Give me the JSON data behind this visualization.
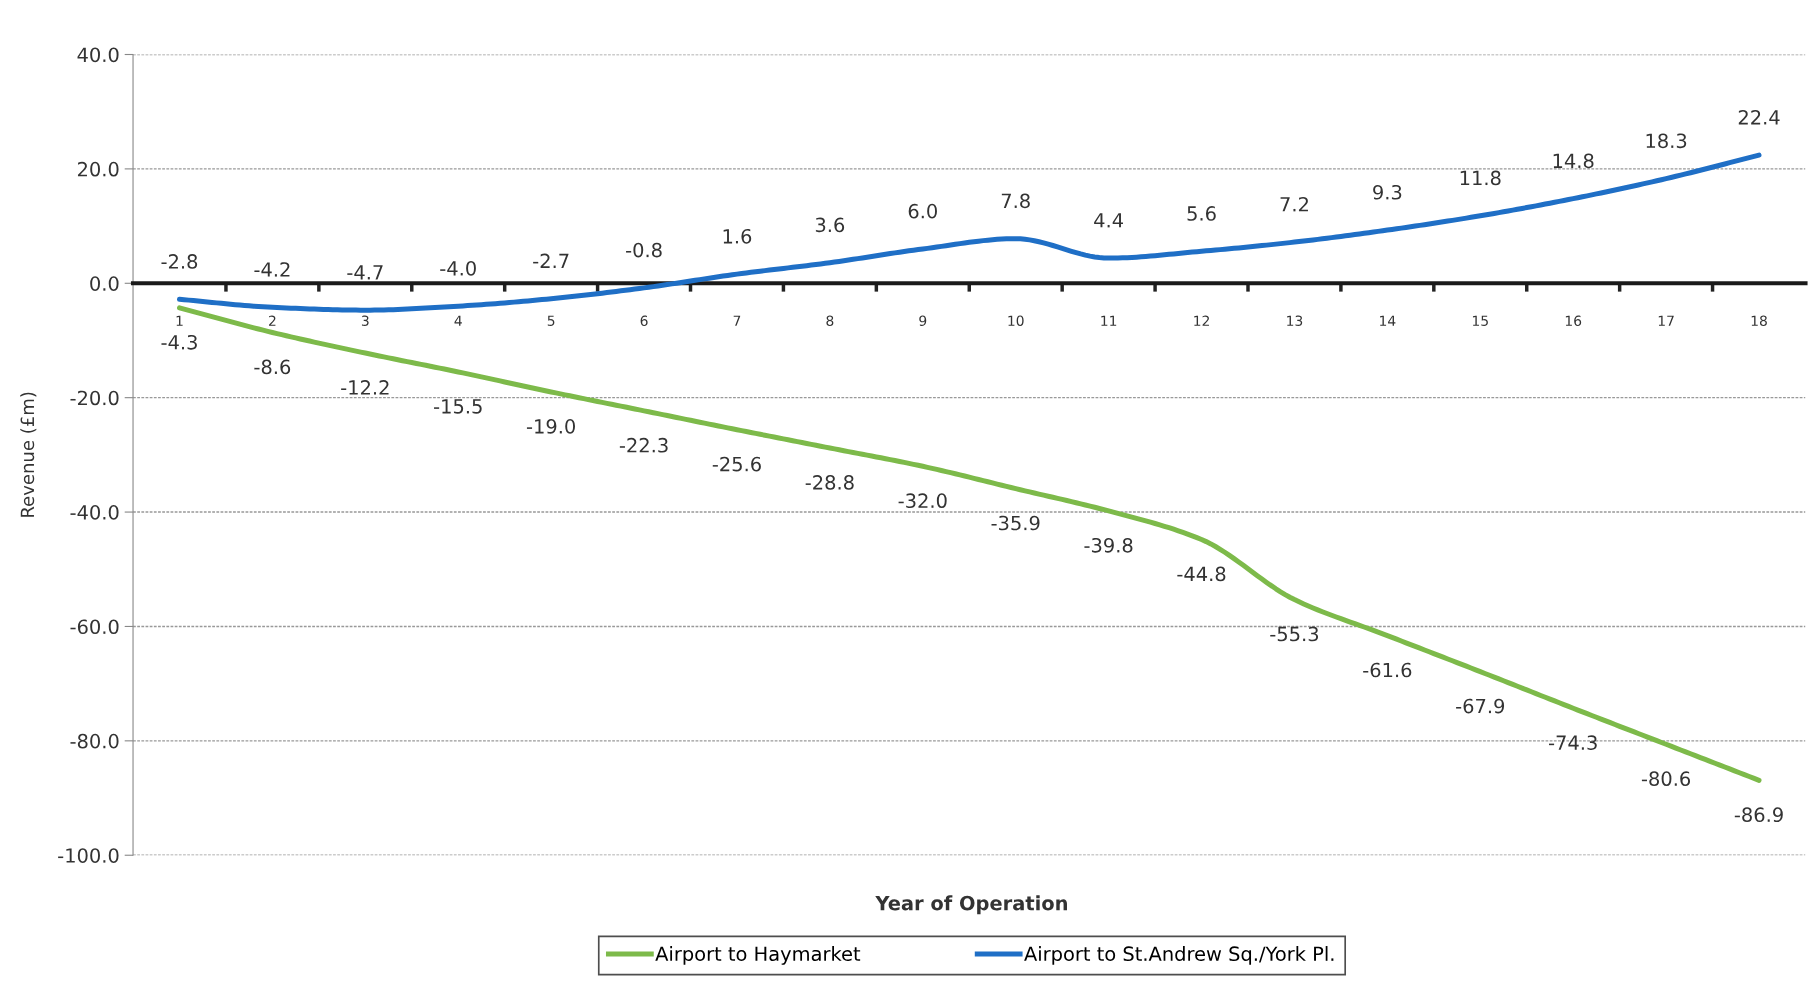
{
  "chart_data": {
    "type": "line",
    "xlabel": "Year of Operation",
    "ylabel": "Revenue (£m)",
    "categories": [
      "1",
      "2",
      "3",
      "4",
      "5",
      "6",
      "7",
      "8",
      "9",
      "10",
      "11",
      "12",
      "13",
      "14",
      "15",
      "16",
      "17",
      "18"
    ],
    "series": [
      {
        "name": "Airport to Haymarket",
        "color": "#7dba4a",
        "values": [
          -4.3,
          -8.6,
          -12.2,
          -15.5,
          -19.0,
          -22.3,
          -25.6,
          -28.8,
          -32.0,
          -35.9,
          -39.8,
          -44.8,
          -55.3,
          -61.6,
          -67.9,
          -74.3,
          -80.6,
          -86.9
        ],
        "value_labels": [
          "-4.3",
          "-8.6",
          "-12.2",
          "-15.5",
          "-19.0",
          "-22.3",
          "-25.6",
          "-28.8",
          "-32.0",
          "-35.9",
          "-39.8",
          "-44.8",
          "-55.3",
          "-61.6",
          "-67.9",
          "-74.3",
          "-80.6",
          "-86.9"
        ]
      },
      {
        "name": "Airport to St.Andrew Sq./York Pl.",
        "color": "#1f6fc6",
        "values": [
          -2.8,
          -4.2,
          -4.7,
          -4.0,
          -2.7,
          -0.8,
          1.6,
          3.6,
          6.0,
          7.8,
          4.4,
          5.6,
          7.2,
          9.3,
          11.8,
          14.8,
          18.3,
          22.4
        ],
        "value_labels": [
          "-2.8",
          "-4.2",
          "-4.7",
          "-4.0",
          "-2.7",
          "-0.8",
          "1.6",
          "3.6",
          "6.0",
          "7.8",
          "4.4",
          "5.6",
          "7.2",
          "9.3",
          "11.8",
          "14.8",
          "18.3",
          "22.4"
        ]
      }
    ],
    "ylim": [
      -100,
      40
    ],
    "yticks": [
      {
        "value": -100,
        "label": "-100.0"
      },
      {
        "value": -80,
        "label": "-80.0"
      },
      {
        "value": -60,
        "label": "-60.0"
      },
      {
        "value": -40,
        "label": "-40.0"
      },
      {
        "value": -20,
        "label": "-20.0"
      },
      {
        "value": 0,
        "label": "0.0"
      },
      {
        "value": 20,
        "label": "20.0"
      },
      {
        "value": 40,
        "label": "40.0"
      }
    ],
    "grid": "y",
    "legend": "bottom",
    "marker": "none",
    "line_style": "solid"
  }
}
